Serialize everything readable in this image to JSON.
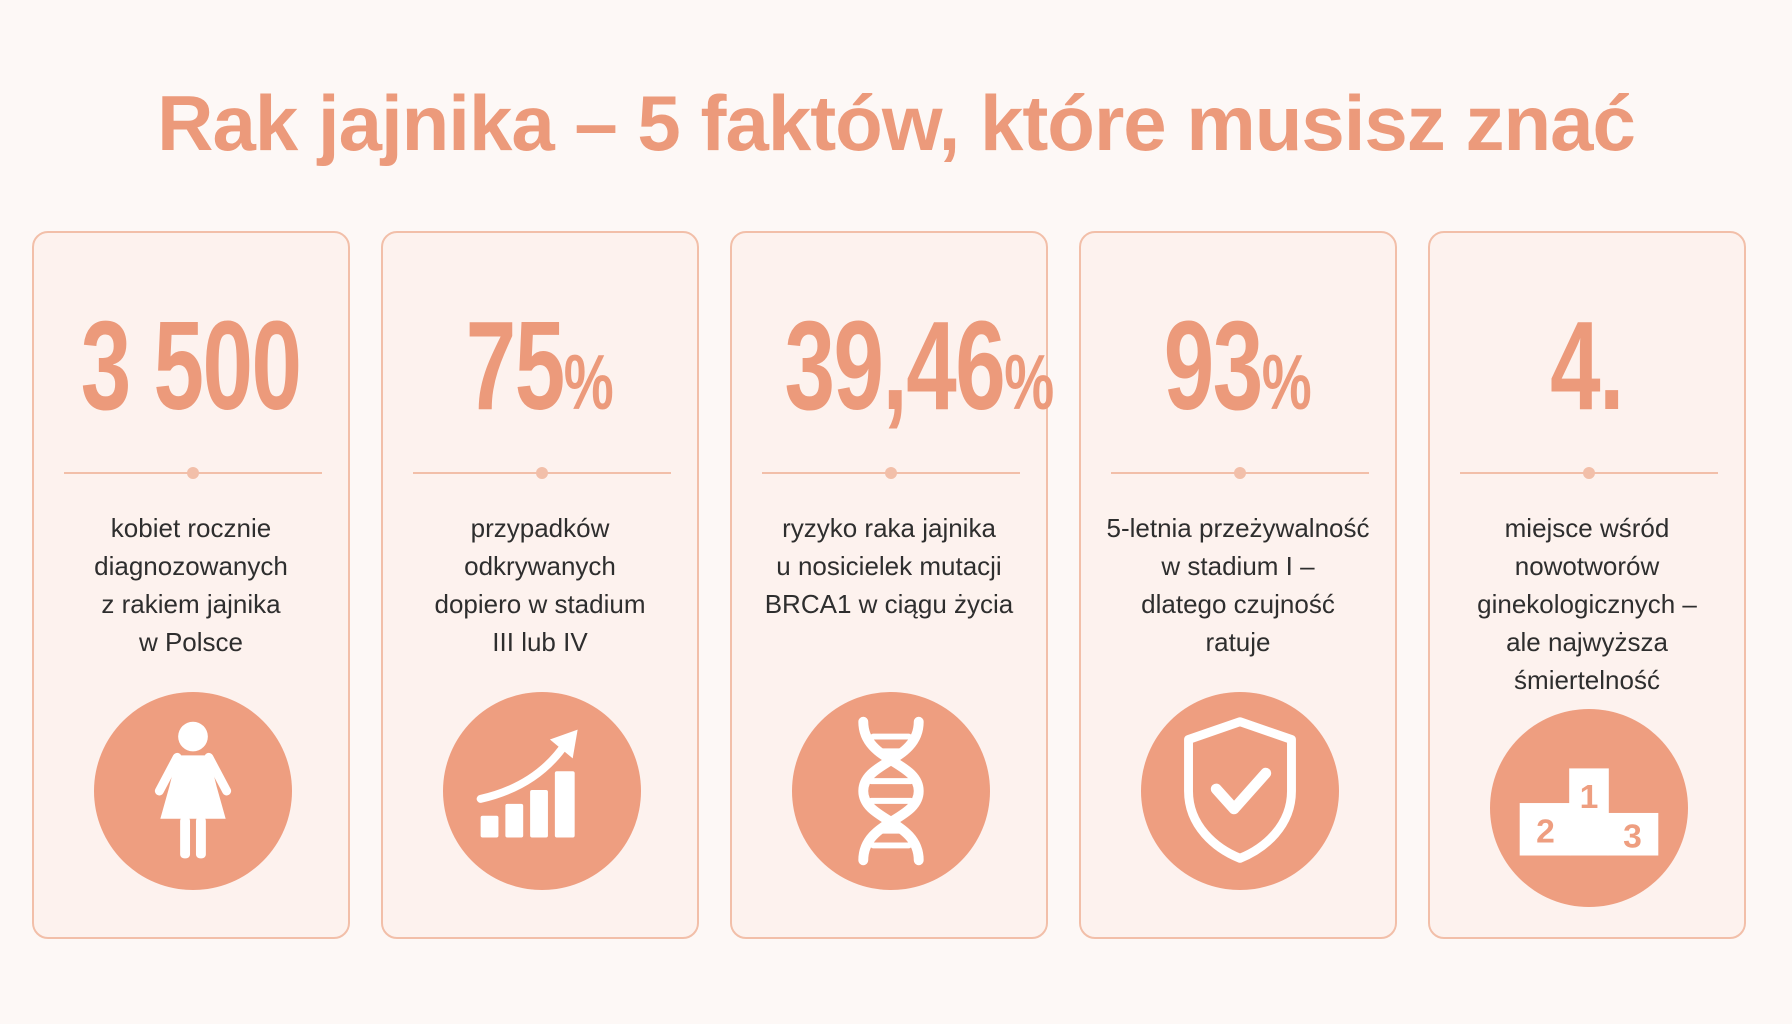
{
  "header": {
    "title": "Rak jajnika – 5 faktów, które musisz znać"
  },
  "cards": [
    {
      "value": "3 500",
      "text": [
        "kobiet rocznie",
        "diagnozowanych",
        "z rakiem jajnika",
        "w Polsce"
      ]
    },
    {
      "value": "75",
      "unit": "%",
      "text": [
        "przypadków",
        "odkrywanych",
        "dopiero w stadium",
        "III lub IV"
      ]
    },
    {
      "value": "39,46",
      "unit": "%",
      "text": [
        "ryzyko raka jajnika",
        "u nosicielek mutacji",
        "BRCA1 w ciągu życia"
      ]
    },
    {
      "value": "93",
      "unit": "%",
      "text": [
        "5-letnia przeżywalność",
        "w stadium I –",
        "dlatego czujność",
        "ratuje"
      ]
    },
    {
      "value": "4.",
      "text": [
        "miejsce wśród",
        "nowotworów",
        "ginekologicznych –",
        "ale najwyższa",
        "śmiertelność"
      ],
      "icon_labels": [
        "1",
        "2",
        "3"
      ]
    }
  ]
}
